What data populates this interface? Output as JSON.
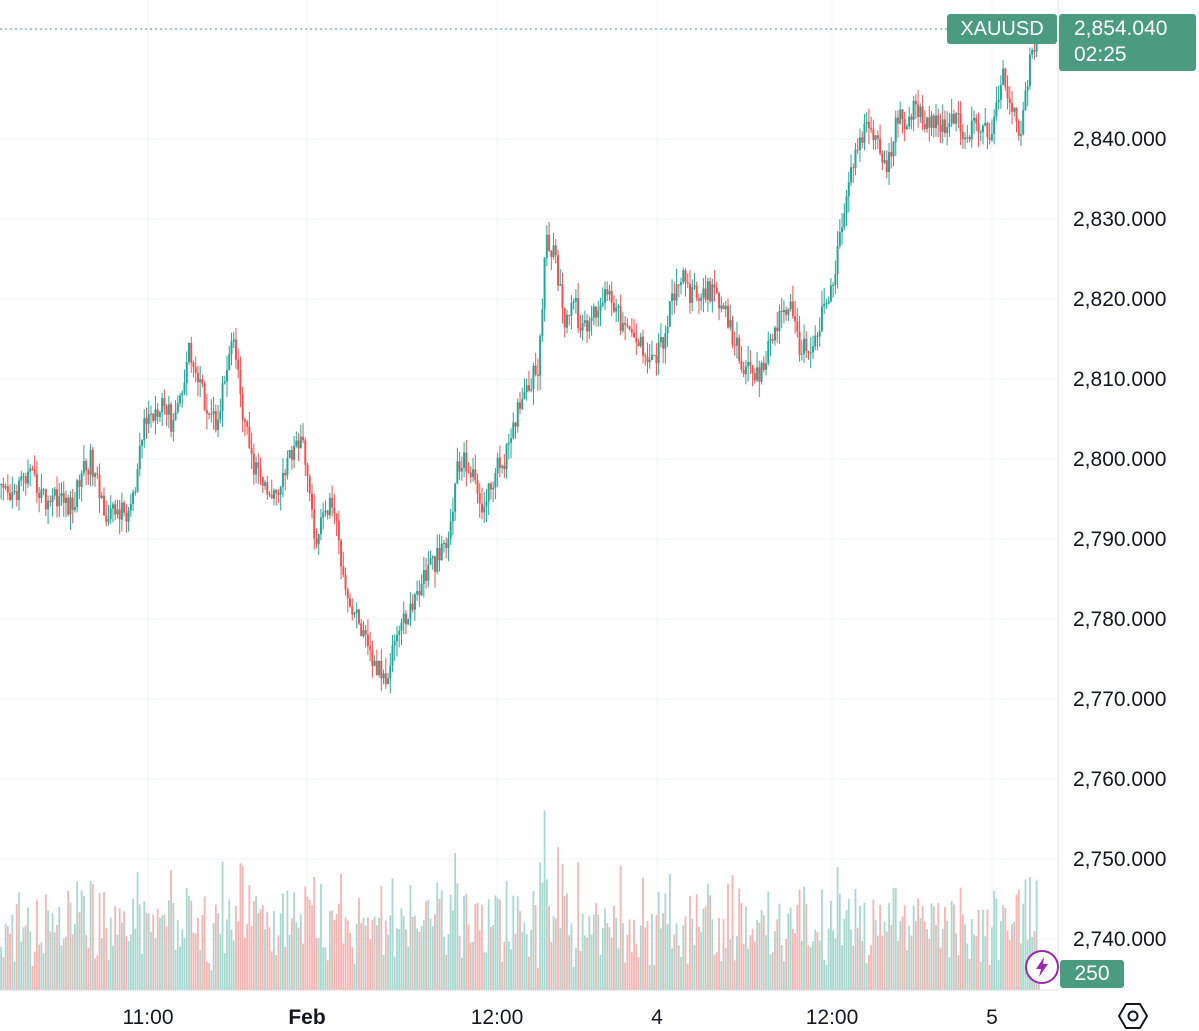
{
  "chart_data": {
    "type": "candlestick",
    "symbol": "XAUUSD",
    "last_price": "2,854.040",
    "countdown": "02:25",
    "volume_value": "250",
    "y_ticks": [
      "2,840.000",
      "2,830.000",
      "2,820.000",
      "2,810.000",
      "2,800.000",
      "2,790.000",
      "2,780.000",
      "2,770.000",
      "2,760.000",
      "2,750.000",
      "2,740.000"
    ],
    "x_ticks": [
      "11:00",
      "Feb",
      "12:00",
      "4",
      "12:00",
      "5"
    ],
    "ylim": [
      2735,
      2857
    ],
    "series_close": [
      2796,
      2795,
      2797,
      2798,
      2797,
      2795,
      2796,
      2795,
      2794,
      2799,
      2800,
      2796,
      2793,
      2794,
      2793,
      2796,
      2805,
      2806,
      2808,
      2805,
      2808,
      2814,
      2810,
      2807,
      2805,
      2810,
      2815,
      2806,
      2800,
      2798,
      2795,
      2797,
      2800,
      2803,
      2801,
      2790,
      2793,
      2795,
      2788,
      2782,
      2780,
      2776,
      2774,
      2773,
      2778,
      2780,
      2782,
      2785,
      2787,
      2788,
      2790,
      2799,
      2800,
      2797,
      2794,
      2798,
      2800,
      2802,
      2808,
      2810,
      2812,
      2828,
      2825,
      2818,
      2820,
      2816,
      2818,
      2820,
      2822,
      2818,
      2816,
      2815,
      2814,
      2813,
      2815,
      2820,
      2823,
      2821,
      2820,
      2822,
      2820,
      2818,
      2815,
      2812,
      2810,
      2811,
      2815,
      2818,
      2820,
      2815,
      2814,
      2815,
      2819,
      2822,
      2830,
      2836,
      2840,
      2842,
      2840,
      2836,
      2842,
      2843,
      2844,
      2843,
      2843,
      2842,
      2843,
      2842,
      2841,
      2842,
      2841,
      2842,
      2848,
      2845,
      2841,
      2850,
      2854
    ],
    "volume_seed": 42
  },
  "colors": {
    "up": "#26a69a",
    "down": "#ef5350",
    "badge": "#4a9b7f",
    "grid": "#f0f3fa"
  }
}
